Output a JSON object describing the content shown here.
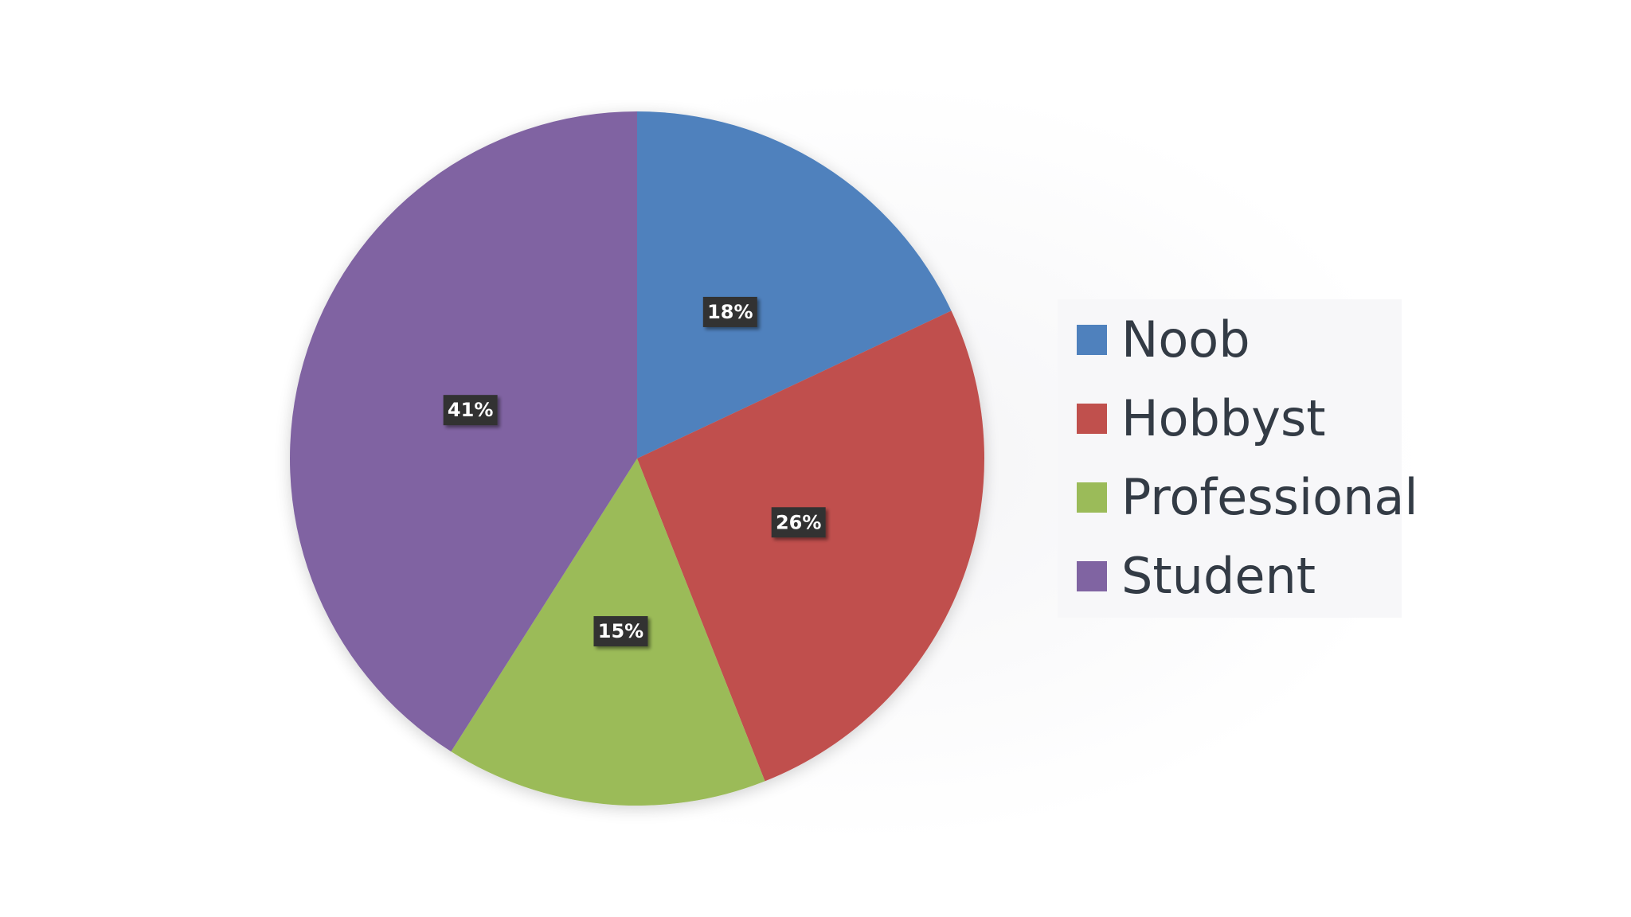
{
  "chart_data": {
    "type": "pie",
    "title": "",
    "categories": [
      "Noob",
      "Hobbyst",
      "Professional",
      "Student"
    ],
    "values": [
      18,
      26,
      15,
      41
    ],
    "data_labels": [
      "18%",
      "26%",
      "15%",
      "41%"
    ],
    "colors": [
      "#4f81bd",
      "#c0504d",
      "#9bbb59",
      "#8064a2"
    ],
    "start_angle": "12 o'clock",
    "direction": "clockwise",
    "legend": {
      "placement": "right",
      "entries": [
        "Noob",
        "Hobbyst",
        "Professional",
        "Student"
      ]
    },
    "label_style": {
      "background": "#333333",
      "text_color": "#ffffff"
    }
  }
}
